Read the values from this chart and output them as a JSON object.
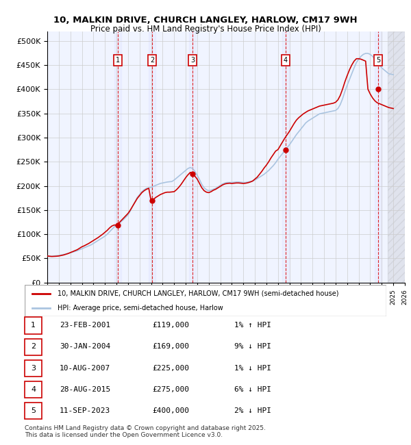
{
  "title_line1": "10, MALKIN DRIVE, CHURCH LANGLEY, HARLOW, CM17 9WH",
  "title_line2": "Price paid vs. HM Land Registry's House Price Index (HPI)",
  "ylabel": "",
  "xlabel": "",
  "xlim": [
    1995,
    2026
  ],
  "ylim": [
    0,
    520000
  ],
  "yticks": [
    0,
    50000,
    100000,
    150000,
    200000,
    250000,
    300000,
    350000,
    400000,
    450000,
    500000
  ],
  "ytick_labels": [
    "£0",
    "£50K",
    "£100K",
    "£150K",
    "£200K",
    "£250K",
    "£300K",
    "£350K",
    "£400K",
    "£450K",
    "£500K"
  ],
  "background_color": "#ffffff",
  "plot_bg_color": "#f0f4ff",
  "grid_color": "#cccccc",
  "hpi_line_color": "#aac4e0",
  "price_line_color": "#cc0000",
  "sale_marker_color": "#cc0000",
  "vline_color": "#dd0000",
  "sale_dates_decimal": [
    2001.14,
    2004.08,
    2007.61,
    2015.66,
    2023.7
  ],
  "sale_prices": [
    119000,
    169000,
    225000,
    275000,
    400000
  ],
  "sale_labels": [
    "1",
    "2",
    "3",
    "4",
    "5"
  ],
  "legend_label_price": "10, MALKIN DRIVE, CHURCH LANGLEY, HARLOW, CM17 9WH (semi-detached house)",
  "legend_label_hpi": "HPI: Average price, semi-detached house, Harlow",
  "table_rows": [
    [
      "1",
      "23-FEB-2001",
      "£119,000",
      "1% ↑ HPI"
    ],
    [
      "2",
      "30-JAN-2004",
      "£169,000",
      "9% ↓ HPI"
    ],
    [
      "3",
      "10-AUG-2007",
      "£225,000",
      "1% ↓ HPI"
    ],
    [
      "4",
      "28-AUG-2015",
      "£275,000",
      "6% ↓ HPI"
    ],
    [
      "5",
      "11-SEP-2023",
      "£400,000",
      "2% ↓ HPI"
    ]
  ],
  "footnote": "Contains HM Land Registry data © Crown copyright and database right 2025.\nThis data is licensed under the Open Government Licence v3.0.",
  "hpi_x": [
    1995.0,
    1995.1,
    1995.2,
    1995.3,
    1995.4,
    1995.5,
    1995.6,
    1995.7,
    1995.8,
    1995.9,
    1996.0,
    1996.1,
    1996.2,
    1996.3,
    1996.4,
    1996.5,
    1996.6,
    1996.7,
    1996.8,
    1996.9,
    1997.0,
    1997.2,
    1997.4,
    1997.6,
    1997.8,
    1998.0,
    1998.2,
    1998.4,
    1998.6,
    1998.8,
    1999.0,
    1999.2,
    1999.4,
    1999.6,
    1999.8,
    2000.0,
    2000.2,
    2000.4,
    2000.6,
    2000.8,
    2001.0,
    2001.2,
    2001.4,
    2001.6,
    2001.8,
    2002.0,
    2002.2,
    2002.4,
    2002.6,
    2002.8,
    2003.0,
    2003.2,
    2003.4,
    2003.6,
    2003.8,
    2004.0,
    2004.2,
    2004.4,
    2004.6,
    2004.8,
    2005.0,
    2005.2,
    2005.4,
    2005.6,
    2005.8,
    2006.0,
    2006.2,
    2006.4,
    2006.6,
    2006.8,
    2007.0,
    2007.2,
    2007.4,
    2007.6,
    2007.8,
    2008.0,
    2008.2,
    2008.4,
    2008.6,
    2008.8,
    2009.0,
    2009.2,
    2009.4,
    2009.6,
    2009.8,
    2010.0,
    2010.2,
    2010.4,
    2010.6,
    2010.8,
    2011.0,
    2011.2,
    2011.4,
    2011.6,
    2011.8,
    2012.0,
    2012.2,
    2012.4,
    2012.6,
    2012.8,
    2013.0,
    2013.2,
    2013.4,
    2013.6,
    2013.8,
    2014.0,
    2014.2,
    2014.4,
    2014.6,
    2014.8,
    2015.0,
    2015.2,
    2015.4,
    2015.6,
    2015.8,
    2016.0,
    2016.2,
    2016.4,
    2016.6,
    2016.8,
    2017.0,
    2017.2,
    2017.4,
    2017.6,
    2017.8,
    2018.0,
    2018.2,
    2018.4,
    2018.6,
    2018.8,
    2019.0,
    2019.2,
    2019.4,
    2019.6,
    2019.8,
    2020.0,
    2020.2,
    2020.4,
    2020.6,
    2020.8,
    2021.0,
    2021.2,
    2021.4,
    2021.6,
    2021.8,
    2022.0,
    2022.2,
    2022.4,
    2022.6,
    2022.8,
    2023.0,
    2023.2,
    2023.4,
    2023.6,
    2023.8,
    2024.0,
    2024.2,
    2024.4,
    2024.6,
    2025.0
  ],
  "hpi_y": [
    55000,
    54500,
    54000,
    54200,
    54500,
    54800,
    55000,
    55300,
    55500,
    55800,
    56000,
    56500,
    57000,
    57500,
    58000,
    58500,
    59000,
    59800,
    60500,
    61000,
    62000,
    63000,
    64500,
    66000,
    68000,
    70000,
    72000,
    74000,
    76000,
    78000,
    81000,
    84000,
    87000,
    90000,
    93000,
    96000,
    100000,
    105000,
    110000,
    115000,
    119000,
    122000,
    126000,
    130000,
    135000,
    140000,
    148000,
    158000,
    167000,
    176000,
    182000,
    188000,
    192000,
    195000,
    196000,
    197000,
    199000,
    201000,
    203000,
    205000,
    206000,
    207000,
    208000,
    208500,
    209000,
    212000,
    216000,
    220000,
    224000,
    228000,
    232000,
    236000,
    238000,
    236000,
    230000,
    222000,
    213000,
    203000,
    196000,
    192000,
    190000,
    191000,
    193000,
    195000,
    198000,
    201000,
    204000,
    206000,
    207000,
    207000,
    207000,
    207500,
    208000,
    208000,
    207500,
    207000,
    207000,
    208000,
    209000,
    210000,
    212000,
    215000,
    218000,
    221000,
    224000,
    228000,
    232000,
    237000,
    242000,
    248000,
    255000,
    261000,
    267000,
    273000,
    279000,
    285000,
    292000,
    299000,
    306000,
    312000,
    318000,
    324000,
    330000,
    334000,
    337000,
    340000,
    343000,
    346000,
    349000,
    350000,
    351000,
    352000,
    353000,
    354000,
    355000,
    356000,
    360000,
    368000,
    380000,
    395000,
    408000,
    420000,
    432000,
    444000,
    455000,
    462000,
    468000,
    472000,
    474000,
    474000,
    472000,
    468000,
    462000,
    456000,
    450000,
    444000,
    440000,
    436000,
    432000,
    430000
  ],
  "price_x": [
    1995.0,
    1995.2,
    1995.4,
    1995.6,
    1995.8,
    1996.0,
    1996.2,
    1996.4,
    1996.6,
    1996.8,
    1997.0,
    1997.2,
    1997.4,
    1997.6,
    1997.8,
    1998.0,
    1998.2,
    1998.4,
    1998.6,
    1998.8,
    1999.0,
    1999.2,
    1999.4,
    1999.6,
    1999.8,
    2000.0,
    2000.2,
    2000.4,
    2000.6,
    2000.8,
    2001.0,
    2001.2,
    2001.4,
    2001.6,
    2001.8,
    2002.0,
    2002.2,
    2002.4,
    2002.6,
    2002.8,
    2003.0,
    2003.2,
    2003.4,
    2003.6,
    2003.8,
    2004.0,
    2004.2,
    2004.4,
    2004.6,
    2004.8,
    2005.0,
    2005.2,
    2005.4,
    2005.6,
    2005.8,
    2006.0,
    2006.2,
    2006.4,
    2006.6,
    2006.8,
    2007.0,
    2007.2,
    2007.4,
    2007.6,
    2007.8,
    2008.0,
    2008.2,
    2008.4,
    2008.6,
    2008.8,
    2009.0,
    2009.2,
    2009.4,
    2009.6,
    2009.8,
    2010.0,
    2010.2,
    2010.4,
    2010.6,
    2010.8,
    2011.0,
    2011.2,
    2011.4,
    2011.6,
    2011.8,
    2012.0,
    2012.2,
    2012.4,
    2012.6,
    2012.8,
    2013.0,
    2013.2,
    2013.4,
    2013.6,
    2013.8,
    2014.0,
    2014.2,
    2014.4,
    2014.6,
    2014.8,
    2015.0,
    2015.2,
    2015.4,
    2015.6,
    2015.8,
    2016.0,
    2016.2,
    2016.4,
    2016.6,
    2016.8,
    2017.0,
    2017.2,
    2017.4,
    2017.6,
    2017.8,
    2018.0,
    2018.2,
    2018.4,
    2018.6,
    2018.8,
    2019.0,
    2019.2,
    2019.4,
    2019.6,
    2019.8,
    2020.0,
    2020.2,
    2020.4,
    2020.6,
    2020.8,
    2021.0,
    2021.2,
    2021.4,
    2021.6,
    2021.8,
    2022.0,
    2022.2,
    2022.4,
    2022.6,
    2022.8,
    2023.0,
    2023.2,
    2023.4,
    2023.6,
    2023.8,
    2024.0,
    2024.2,
    2024.4,
    2024.6,
    2025.0
  ],
  "price_y": [
    55000,
    54500,
    54000,
    54200,
    54500,
    55000,
    56000,
    57000,
    58500,
    60000,
    62000,
    64000,
    66000,
    68000,
    71000,
    74000,
    76000,
    78500,
    81000,
    84000,
    87000,
    90000,
    93000,
    96500,
    100000,
    104000,
    108000,
    113000,
    117000,
    119000,
    119000,
    123000,
    128000,
    133000,
    138000,
    143000,
    150000,
    158000,
    166000,
    174000,
    180000,
    186000,
    190000,
    193000,
    195000,
    169000,
    172000,
    176000,
    179000,
    182000,
    184000,
    186000,
    187000,
    187000,
    187500,
    188000,
    192000,
    197000,
    203000,
    210000,
    217000,
    223000,
    228000,
    225000,
    220000,
    214000,
    205000,
    196000,
    190000,
    187000,
    186000,
    188000,
    191000,
    193000,
    196000,
    199000,
    202000,
    204000,
    205000,
    205500,
    205000,
    205500,
    206000,
    206000,
    205500,
    205000,
    205500,
    206500,
    208000,
    210000,
    214000,
    218000,
    224000,
    230000,
    237000,
    243000,
    250000,
    258000,
    265000,
    272000,
    275000,
    283000,
    291000,
    299000,
    306000,
    313000,
    321000,
    329000,
    336000,
    341000,
    345000,
    349000,
    352000,
    355000,
    357000,
    359000,
    361000,
    363000,
    365000,
    366000,
    367000,
    368000,
    369000,
    370000,
    371000,
    373000,
    378000,
    387000,
    400000,
    415000,
    428000,
    440000,
    450000,
    458000,
    463000,
    463000,
    462000,
    460000,
    458000,
    400000,
    390000,
    382000,
    376000,
    372000,
    370000,
    368000,
    366000,
    364000,
    362000,
    360000
  ]
}
